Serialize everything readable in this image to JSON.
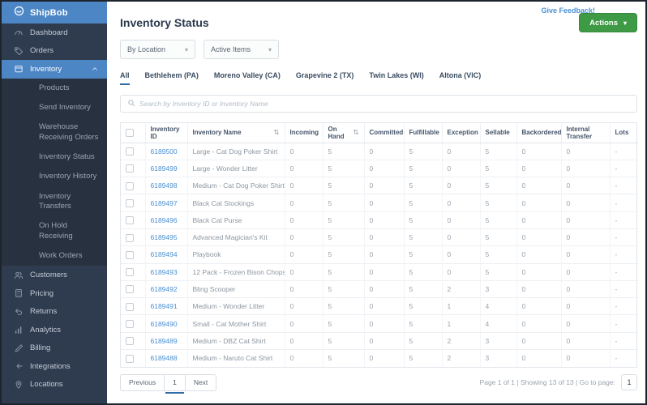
{
  "colors": {
    "brand_blue": "#4c86c5",
    "sidebar_bg": "#2f3b4f",
    "accent_green": "#3e9a44",
    "link_blue": "#4a90d2",
    "active_tab_underline": "#2e6da4"
  },
  "brand": {
    "name": "ShipBob",
    "logo_icon": "shipbob-logo-icon"
  },
  "sidebar": {
    "items": [
      {
        "label": "Dashboard",
        "icon": "gauge-icon",
        "level": "top"
      },
      {
        "label": "Orders",
        "icon": "tag-icon",
        "level": "top"
      },
      {
        "label": "Inventory",
        "icon": "box-icon",
        "level": "top",
        "active": true,
        "chevron": "chevron-up-icon"
      },
      {
        "label": "Products",
        "level": "sub"
      },
      {
        "label": "Send Inventory",
        "level": "sub"
      },
      {
        "label": "Warehouse Receiving Orders",
        "level": "sub"
      },
      {
        "label": "Inventory Status",
        "level": "sub"
      },
      {
        "label": "Inventory History",
        "level": "sub"
      },
      {
        "label": "Inventory Transfers",
        "level": "sub"
      },
      {
        "label": "On Hold Receiving",
        "level": "sub"
      },
      {
        "label": "Work Orders",
        "level": "sub"
      },
      {
        "label": "Customers",
        "icon": "people-icon",
        "level": "top"
      },
      {
        "label": "Pricing",
        "icon": "calculator-icon",
        "level": "top"
      },
      {
        "label": "Returns",
        "icon": "undo-icon",
        "level": "top"
      },
      {
        "label": "Analytics",
        "icon": "bar-chart-icon",
        "level": "top"
      },
      {
        "label": "Billing",
        "icon": "pencil-icon",
        "level": "top"
      },
      {
        "label": "Integrations",
        "icon": "plug-icon",
        "level": "top"
      },
      {
        "label": "Locations",
        "icon": "pin-icon",
        "level": "top"
      }
    ]
  },
  "header": {
    "title": "Inventory Status",
    "feedback_link": "Give Feedback!",
    "actions_button": "Actions",
    "caret_glyph": "▾"
  },
  "filters": [
    {
      "label": "By Location"
    },
    {
      "label": "Active Items"
    }
  ],
  "tabs": {
    "active": "All",
    "items": [
      "All",
      "Bethlehem (PA)",
      "Moreno Valley (CA)",
      "Grapevine 2 (TX)",
      "Twin Lakes (WI)",
      "Altona (VIC)"
    ]
  },
  "search": {
    "placeholder": "Search by Inventory ID or Inventory Name",
    "value": "",
    "icon": "search-icon"
  },
  "table": {
    "sort_glyph": "⇅",
    "columns": [
      {
        "label": "Inventory ID",
        "sortable": false
      },
      {
        "label": "Inventory Name",
        "sortable": true
      },
      {
        "label": "Incoming",
        "sortable": false
      },
      {
        "label": "On Hand",
        "sortable": true
      },
      {
        "label": "Committed",
        "sortable": false
      },
      {
        "label": "Fulfillable",
        "sortable": false
      },
      {
        "label": "Exception",
        "sortable": false
      },
      {
        "label": "Sellable",
        "sortable": false
      },
      {
        "label": "Backordered",
        "sortable": false
      },
      {
        "label": "Internal Transfer",
        "sortable": false
      },
      {
        "label": "Lots",
        "sortable": false
      }
    ],
    "rows": [
      {
        "id": "6189500",
        "name": "Large - Cat Dog Poker Shirt",
        "values": [
          "0",
          "5",
          "0",
          "5",
          "0",
          "5",
          "0",
          "0",
          "-"
        ]
      },
      {
        "id": "6189499",
        "name": "Large - Wonder Litter",
        "values": [
          "0",
          "5",
          "0",
          "5",
          "0",
          "5",
          "0",
          "0",
          "-"
        ]
      },
      {
        "id": "6189498",
        "name": "Medium - Cat Dog Poker Shirt",
        "values": [
          "0",
          "5",
          "0",
          "5",
          "0",
          "5",
          "0",
          "0",
          "-"
        ]
      },
      {
        "id": "6189497",
        "name": "Black Cat Stockings",
        "values": [
          "0",
          "5",
          "0",
          "5",
          "0",
          "5",
          "0",
          "0",
          "-"
        ]
      },
      {
        "id": "6189496",
        "name": "Black Cat Purse",
        "values": [
          "0",
          "5",
          "0",
          "5",
          "0",
          "5",
          "0",
          "0",
          "-"
        ]
      },
      {
        "id": "6189495",
        "name": "Advanced Magician's Kit",
        "values": [
          "0",
          "5",
          "0",
          "5",
          "0",
          "5",
          "0",
          "0",
          "-"
        ]
      },
      {
        "id": "6189494",
        "name": "Playbook",
        "values": [
          "0",
          "5",
          "0",
          "5",
          "0",
          "5",
          "0",
          "0",
          "-"
        ]
      },
      {
        "id": "6189493",
        "name": "12 Pack - Frozen Bison Chops",
        "values": [
          "0",
          "5",
          "0",
          "5",
          "0",
          "5",
          "0",
          "0",
          "-"
        ]
      },
      {
        "id": "6189492",
        "name": "Bling Scooper",
        "values": [
          "0",
          "5",
          "0",
          "5",
          "2",
          "3",
          "0",
          "0",
          "-"
        ]
      },
      {
        "id": "6189491",
        "name": "Medium - Wonder Litter",
        "values": [
          "0",
          "5",
          "0",
          "5",
          "1",
          "4",
          "0",
          "0",
          "-"
        ]
      },
      {
        "id": "6189490",
        "name": "Small - Cat Mother Shirt",
        "values": [
          "0",
          "5",
          "0",
          "5",
          "1",
          "4",
          "0",
          "0",
          "-"
        ]
      },
      {
        "id": "6189489",
        "name": "Medium - DBZ Cat Shirt",
        "values": [
          "0",
          "5",
          "0",
          "5",
          "2",
          "3",
          "0",
          "0",
          "-"
        ]
      },
      {
        "id": "6189488",
        "name": "Medium - Naruto Cat Shirt",
        "values": [
          "0",
          "5",
          "0",
          "5",
          "2",
          "3",
          "0",
          "0",
          "-"
        ]
      }
    ]
  },
  "pagination": {
    "previous": "Previous",
    "pages": [
      "1"
    ],
    "active_page": "1",
    "next": "Next",
    "summary": "Page 1 of 1 | Showing 13 of 13 | Go to page:",
    "goto_value": "1"
  }
}
